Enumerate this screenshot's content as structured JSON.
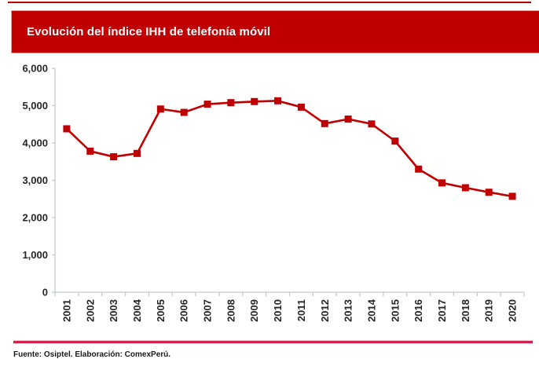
{
  "title_bar": {
    "text": "Evolución del índice IHH de telefonía móvil",
    "bg_color": "#C00000",
    "text_color": "#FFFFFF"
  },
  "top_rule_color": "#C00000",
  "footer": {
    "text": "Fuente: Osiptel. Elaboración: ComexPerú.",
    "rule_color": "#D5224A"
  },
  "chart_data": {
    "type": "line",
    "title": "Evolución del índice IHH de telefonía móvil",
    "categories": [
      "2001",
      "2002",
      "2003",
      "2004",
      "2005",
      "2006",
      "2007",
      "2008",
      "2009",
      "2010",
      "2011",
      "2012",
      "2013",
      "2014",
      "2015",
      "2016",
      "2017",
      "2018",
      "2019",
      "2020"
    ],
    "series": [
      {
        "name": "Índice IHH",
        "color": "#C00000",
        "marker": "square",
        "values": [
          4380,
          3780,
          3630,
          3720,
          4910,
          4820,
          5040,
          5080,
          5110,
          5130,
          4960,
          4520,
          4640,
          4510,
          4050,
          3300,
          2930,
          2800,
          2680,
          2570
        ]
      }
    ],
    "xlabel": "",
    "ylabel": "",
    "ylim": [
      0,
      6000
    ],
    "ytick_interval": 1000,
    "ytick_labels": [
      "0",
      "1,000",
      "2,000",
      "3,000",
      "4,000",
      "5,000",
      "6,000"
    ],
    "grid": false,
    "legend": false,
    "axis_color": "#C2CCCB",
    "tick_label_color": "#262626"
  }
}
